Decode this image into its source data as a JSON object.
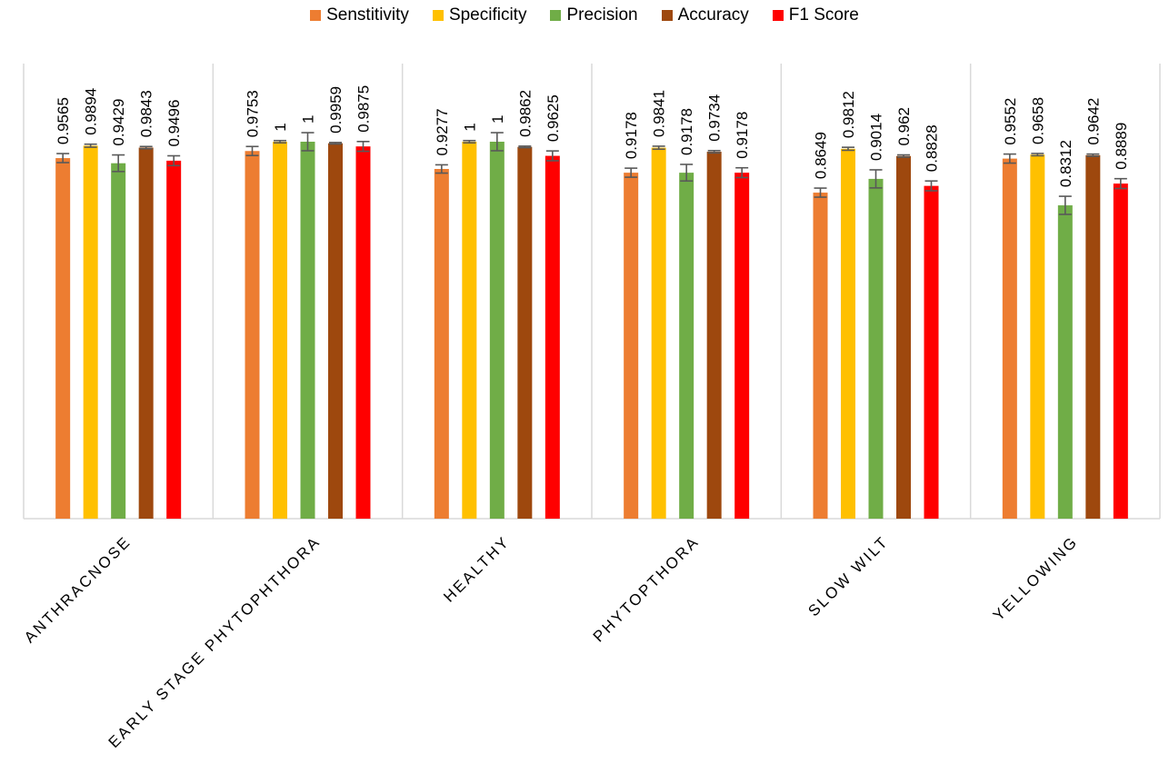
{
  "chart_data": {
    "type": "bar",
    "categories": [
      "ANTHRACNOSE",
      "EARLY STAGE PHYTOPHTHORA",
      "HEALTHY",
      "PHYTOPTHORA",
      "SLOW WILT",
      "YELLOWING"
    ],
    "series": [
      {
        "name": "Senstitivity",
        "color": "#ED7D31",
        "values": [
          0.9565,
          0.9753,
          0.9277,
          0.9178,
          0.8649,
          0.9552
        ],
        "errors": [
          0.012,
          0.012,
          0.011,
          0.012,
          0.012,
          0.012
        ]
      },
      {
        "name": "Specificity",
        "color": "#FFC000",
        "values": [
          0.9894,
          1,
          1,
          0.9841,
          0.9812,
          0.9658
        ],
        "errors": [
          0.004,
          0.003,
          0.003,
          0.004,
          0.004,
          0.003
        ]
      },
      {
        "name": "Precision",
        "color": "#70AD47",
        "values": [
          0.9429,
          1,
          1,
          0.9178,
          0.9014,
          0.8312
        ],
        "errors": [
          0.022,
          0.024,
          0.024,
          0.022,
          0.024,
          0.024
        ]
      },
      {
        "name": "Accuracy",
        "color": "#9E480E",
        "values": [
          0.9843,
          0.9959,
          0.9862,
          0.9734,
          0.962,
          0.9642
        ],
        "errors": [
          0.003,
          0.002,
          0.002,
          0.003,
          0.003,
          0.003
        ]
      },
      {
        "name": "F1 Score",
        "color": "#FF0000",
        "values": [
          0.9496,
          0.9875,
          0.9625,
          0.9178,
          0.8828,
          0.8889
        ],
        "errors": [
          0.013,
          0.013,
          0.013,
          0.013,
          0.013,
          0.013
        ]
      }
    ],
    "data_labels": [
      [
        "0.9565",
        "0.9894",
        "0.9429",
        "0.9843",
        "0.9496"
      ],
      [
        "0.9753",
        "1",
        "1",
        "0.9959",
        "0.9875"
      ],
      [
        "0.9277",
        "1",
        "1",
        "0.9862",
        "0.9625"
      ],
      [
        "0.9178",
        "0.9841",
        "0.9178",
        "0.9734",
        "0.9178"
      ],
      [
        "0.8649",
        "0.9812",
        "0.9014",
        "0.962",
        "0.8828"
      ],
      [
        "0.9552",
        "0.9658",
        "0.8312",
        "0.9642",
        "0.8889"
      ]
    ],
    "ylim": [
      0,
      1
    ],
    "legend_position": "top",
    "grid": false
  }
}
